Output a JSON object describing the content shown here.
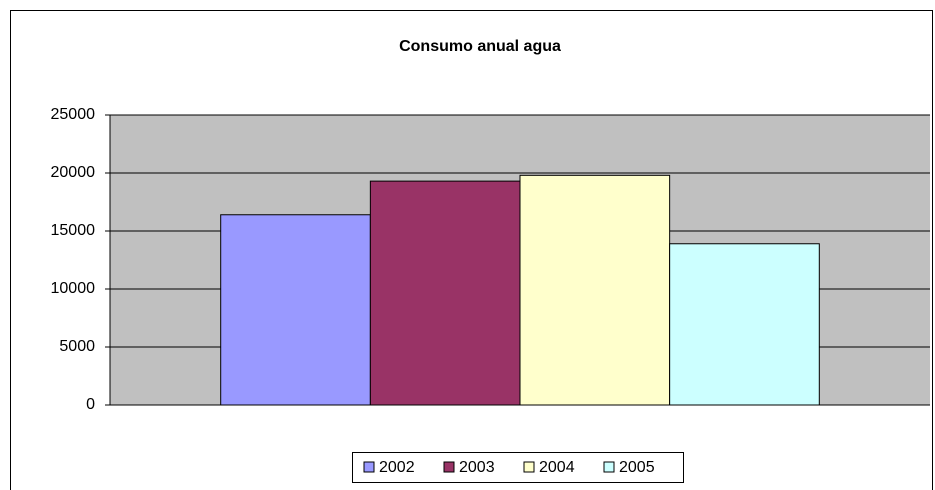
{
  "chart_data": {
    "type": "bar",
    "title": "Consumo anual agua",
    "categories": [
      null
    ],
    "series": [
      {
        "name": "2002",
        "color": "#9999ff",
        "values": [
          16400
        ]
      },
      {
        "name": "2003",
        "color": "#993366",
        "values": [
          19300
        ]
      },
      {
        "name": "2004",
        "color": "#ffffcc",
        "values": [
          19800
        ]
      },
      {
        "name": "2005",
        "color": "#ccffff",
        "values": [
          13900
        ]
      }
    ],
    "ylim": [
      0,
      25000
    ],
    "yticks": [
      0,
      5000,
      10000,
      15000,
      20000,
      25000
    ],
    "grid": true,
    "legend": "bottom"
  }
}
